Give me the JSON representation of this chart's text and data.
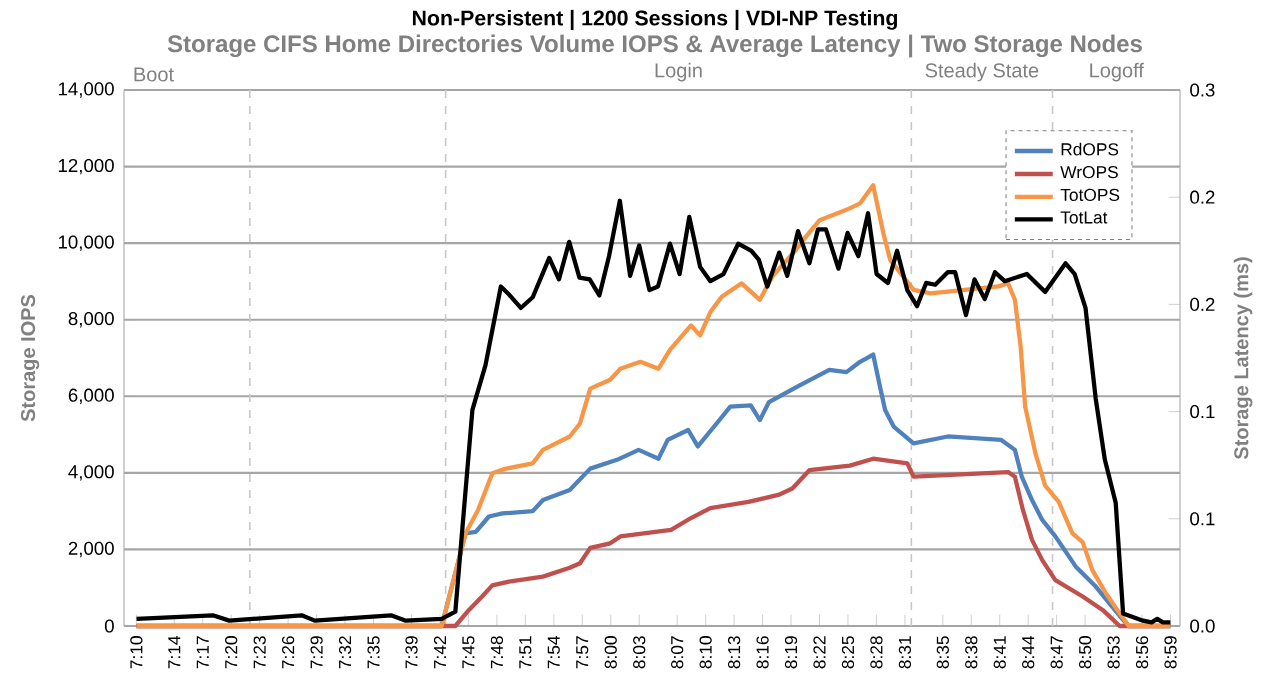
{
  "chart_data": {
    "type": "line",
    "title": "Non-Persistent | 1200 Sessions | VDI-NP Testing",
    "subtitle": "Storage CIFS Home Directories Volume IOPS & Average Latency | Two Storage Nodes",
    "ylabel": "Storage IOPS",
    "y2label": "Storage Latency (ms)",
    "series": [
      {
        "name": "RdOPS",
        "color": "#4f81bd",
        "x": [
          7.167,
          7.703,
          7.745,
          7.763,
          7.786,
          7.81,
          7.863,
          7.881,
          7.928,
          7.964,
          8.011,
          8.049,
          8.084,
          8.1,
          8.136,
          8.153,
          8.191,
          8.21,
          8.246,
          8.262,
          8.278,
          8.331,
          8.384,
          8.414,
          8.438,
          8.461,
          8.473,
          8.482,
          8.497,
          8.532,
          8.592,
          8.686,
          8.71,
          8.722,
          8.74,
          8.758,
          8.781,
          8.817,
          8.852,
          8.876,
          8.9,
          8.91,
          8.983
        ],
        "values": [
          0,
          0,
          2420,
          2460,
          2860,
          2940,
          3000,
          3290,
          3550,
          4110,
          4340,
          4600,
          4370,
          4860,
          5120,
          4690,
          5380,
          5730,
          5760,
          5380,
          5850,
          6280,
          6690,
          6630,
          6900,
          7090,
          6250,
          5640,
          5210,
          4770,
          4950,
          4860,
          4600,
          3900,
          3290,
          2770,
          2340,
          1550,
          1030,
          590,
          160,
          0,
          0
        ]
      },
      {
        "name": "WrOPS",
        "color": "#c0504d",
        "x": [
          7.167,
          7.727,
          7.751,
          7.774,
          7.792,
          7.821,
          7.881,
          7.928,
          7.946,
          7.964,
          7.999,
          8.017,
          8.106,
          8.141,
          8.175,
          8.242,
          8.296,
          8.319,
          8.349,
          8.42,
          8.461,
          8.521,
          8.532,
          8.698,
          8.71,
          8.724,
          8.74,
          8.758,
          8.781,
          8.829,
          8.864,
          8.894,
          8.983
        ],
        "values": [
          0,
          0,
          420,
          770,
          1060,
          1160,
          1290,
          1520,
          1640,
          2040,
          2160,
          2340,
          2510,
          2820,
          3080,
          3240,
          3430,
          3590,
          4070,
          4190,
          4370,
          4250,
          3900,
          4020,
          3900,
          3030,
          2250,
          1720,
          1200,
          770,
          420,
          0,
          0
        ]
      },
      {
        "name": "TotOPS",
        "color": "#f79646",
        "x": [
          7.167,
          7.703,
          7.745,
          7.767,
          7.792,
          7.816,
          7.863,
          7.881,
          7.928,
          7.946,
          7.964,
          7.999,
          8.017,
          8.052,
          8.084,
          8.104,
          8.141,
          8.157,
          8.175,
          8.195,
          8.23,
          8.262,
          8.284,
          8.325,
          8.343,
          8.367,
          8.414,
          8.438,
          8.461,
          8.479,
          8.491,
          8.532,
          8.562,
          8.681,
          8.698,
          8.71,
          8.72,
          8.728,
          8.746,
          8.763,
          8.787,
          8.811,
          8.829,
          8.846,
          8.87,
          8.894,
          8.91,
          8.983
        ],
        "values": [
          0,
          0,
          2420,
          3030,
          3990,
          4110,
          4250,
          4600,
          4950,
          5290,
          6200,
          6430,
          6720,
          6900,
          6720,
          7210,
          7850,
          7590,
          8200,
          8600,
          8950,
          8520,
          9130,
          9820,
          10170,
          10600,
          10870,
          11040,
          11510,
          10250,
          9560,
          8780,
          8690,
          8870,
          8950,
          8520,
          7300,
          5730,
          4510,
          3670,
          3240,
          2420,
          2190,
          1460,
          850,
          330,
          0,
          0
        ]
      },
      {
        "name": "TotLat",
        "color": "#000000",
        "axis": "y2",
        "x": [
          7.167,
          7.301,
          7.33,
          7.457,
          7.48,
          7.614,
          7.64,
          7.703,
          7.727,
          7.757,
          7.78,
          7.807,
          7.82,
          7.842,
          7.863,
          7.892,
          7.909,
          7.927,
          7.945,
          7.963,
          7.98,
          7.997,
          8.016,
          8.034,
          8.05,
          8.068,
          8.083,
          8.104,
          8.121,
          8.138,
          8.157,
          8.175,
          8.198,
          8.224,
          8.247,
          8.26,
          8.275,
          8.296,
          8.31,
          8.329,
          8.349,
          8.364,
          8.378,
          8.4,
          8.416,
          8.435,
          8.452,
          8.467,
          8.487,
          8.503,
          8.521,
          8.538,
          8.554,
          8.57,
          8.592,
          8.605,
          8.624,
          8.639,
          8.657,
          8.675,
          8.692,
          8.731,
          8.763,
          8.799,
          8.815,
          8.834,
          8.852,
          8.868,
          8.887,
          8.9,
          8.935,
          8.95,
          8.96,
          8.97,
          8.983
        ],
        "values": [
          0.004,
          0.006,
          0.003,
          0.006,
          0.003,
          0.006,
          0.003,
          0.004,
          0.008,
          0.121,
          0.146,
          0.19,
          0.186,
          0.178,
          0.184,
          0.206,
          0.194,
          0.215,
          0.195,
          0.194,
          0.185,
          0.207,
          0.238,
          0.196,
          0.213,
          0.188,
          0.19,
          0.214,
          0.197,
          0.229,
          0.201,
          0.193,
          0.197,
          0.214,
          0.21,
          0.205,
          0.19,
          0.209,
          0.196,
          0.221,
          0.203,
          0.222,
          0.222,
          0.2,
          0.22,
          0.207,
          0.231,
          0.197,
          0.192,
          0.21,
          0.188,
          0.179,
          0.192,
          0.191,
          0.198,
          0.198,
          0.174,
          0.194,
          0.183,
          0.198,
          0.193,
          0.197,
          0.187,
          0.203,
          0.197,
          0.178,
          0.127,
          0.093,
          0.069,
          0.007,
          0.003,
          0.002,
          0.004,
          0.002,
          0.002
        ]
      }
    ],
    "xlim": [
      7.145,
      9.0
    ],
    "xticks": [
      {
        "value": 7.1667,
        "label": "7:10"
      },
      {
        "value": 7.2333,
        "label": "7:14"
      },
      {
        "value": 7.2833,
        "label": "7:17"
      },
      {
        "value": 7.3333,
        "label": "7:20"
      },
      {
        "value": 7.3833,
        "label": "7:23"
      },
      {
        "value": 7.4333,
        "label": "7:26"
      },
      {
        "value": 7.4833,
        "label": "7:29"
      },
      {
        "value": 7.5333,
        "label": "7:32"
      },
      {
        "value": 7.5833,
        "label": "7:35"
      },
      {
        "value": 7.65,
        "label": "7:39"
      },
      {
        "value": 7.7,
        "label": "7:42"
      },
      {
        "value": 7.75,
        "label": "7:45"
      },
      {
        "value": 7.8,
        "label": "7:48"
      },
      {
        "value": 7.85,
        "label": "7:51"
      },
      {
        "value": 7.9,
        "label": "7:54"
      },
      {
        "value": 7.95,
        "label": "7:57"
      },
      {
        "value": 8.0,
        "label": "8:00"
      },
      {
        "value": 8.05,
        "label": "8:03"
      },
      {
        "value": 8.1167,
        "label": "8:07"
      },
      {
        "value": 8.1667,
        "label": "8:10"
      },
      {
        "value": 8.2167,
        "label": "8:13"
      },
      {
        "value": 8.2667,
        "label": "8:16"
      },
      {
        "value": 8.3167,
        "label": "8:19"
      },
      {
        "value": 8.3667,
        "label": "8:22"
      },
      {
        "value": 8.4167,
        "label": "8:25"
      },
      {
        "value": 8.4667,
        "label": "8:28"
      },
      {
        "value": 8.5167,
        "label": "8:31"
      },
      {
        "value": 8.5833,
        "label": "8:35"
      },
      {
        "value": 8.6333,
        "label": "8:38"
      },
      {
        "value": 8.6833,
        "label": "8:41"
      },
      {
        "value": 8.7333,
        "label": "8:44"
      },
      {
        "value": 8.7833,
        "label": "8:47"
      },
      {
        "value": 8.8333,
        "label": "8:50"
      },
      {
        "value": 8.8833,
        "label": "8:53"
      },
      {
        "value": 8.9333,
        "label": "8:56"
      },
      {
        "value": 8.9833,
        "label": "8:59"
      }
    ],
    "ylim": [
      0,
      14000
    ],
    "yticks": [
      {
        "value": 0,
        "label": "0"
      },
      {
        "value": 2000,
        "label": "2,000"
      },
      {
        "value": 4000,
        "label": "4,000"
      },
      {
        "value": 6000,
        "label": "6,000"
      },
      {
        "value": 8000,
        "label": "8,000"
      },
      {
        "value": 10000,
        "label": "10,000"
      },
      {
        "value": 12000,
        "label": "12,000"
      },
      {
        "value": 14000,
        "label": "14,000"
      }
    ],
    "y2lim": [
      0,
      0.3
    ],
    "y2ticks": [
      {
        "value": 0,
        "label": "0.0"
      },
      {
        "value": 0.06,
        "label": "0.1"
      },
      {
        "value": 0.12,
        "label": "0.1"
      },
      {
        "value": 0.18,
        "label": "0.2"
      },
      {
        "value": 0.24,
        "label": "0.2"
      },
      {
        "value": 0.3,
        "label": "0.3"
      }
    ],
    "ref_lines": [
      {
        "axis": "x",
        "value": 7.366,
        "color": "#c8c8c8",
        "line_style": "dashed"
      },
      {
        "axis": "x",
        "value": 7.71,
        "color": "#c8c8c8",
        "line_style": "dashed"
      },
      {
        "axis": "x",
        "value": 8.528,
        "color": "#c8c8c8",
        "line_style": "dashed"
      },
      {
        "axis": "x",
        "value": 8.776,
        "color": "#c8c8c8",
        "line_style": "dashed"
      }
    ],
    "annotations": [
      "Boot",
      "Login",
      "Steady State",
      "Logoff"
    ],
    "grid": "y",
    "legend": "top right"
  }
}
